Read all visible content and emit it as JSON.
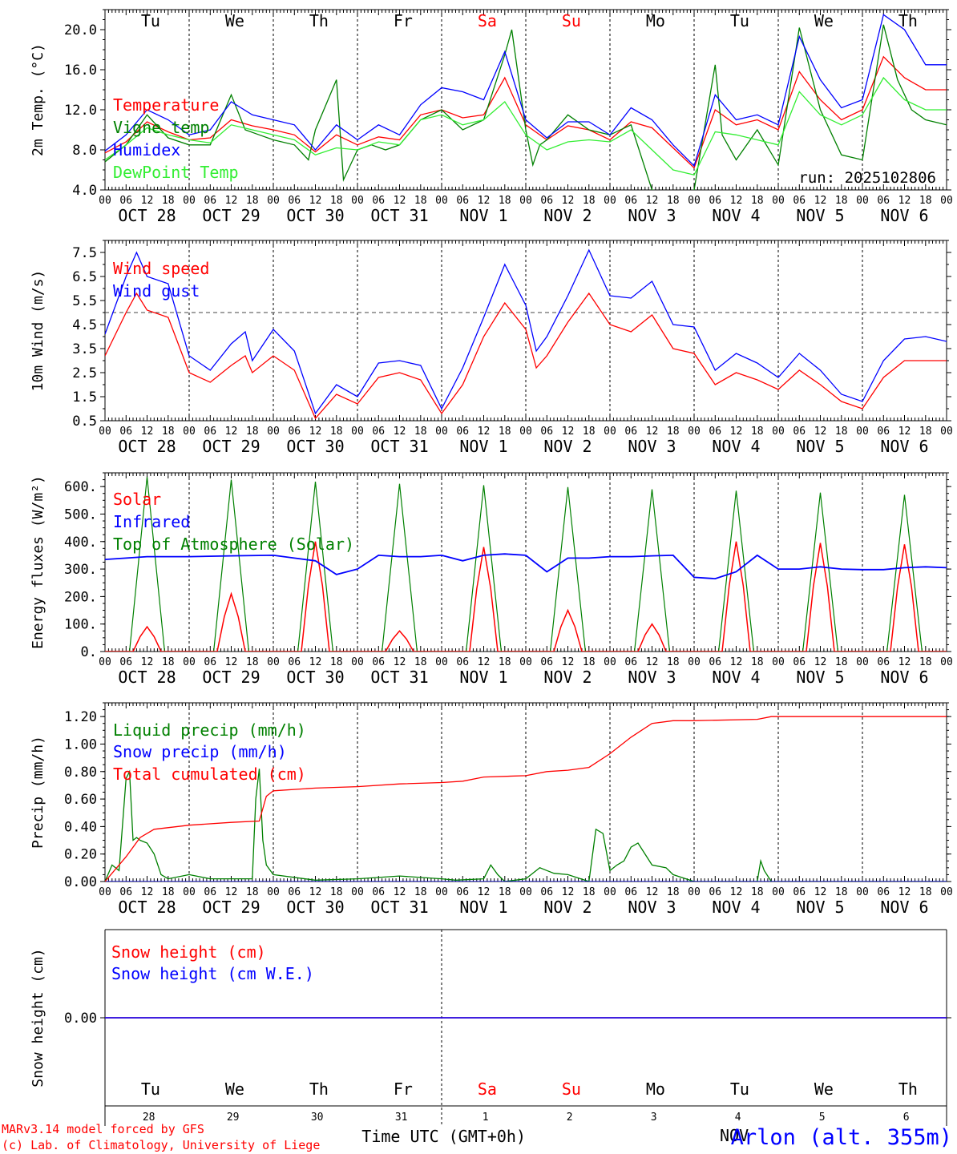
{
  "run_label": "run: 2025102806",
  "hour_labels": [
    "00",
    "06",
    "12",
    "18"
  ],
  "day_abbrev": [
    "Tu",
    "We",
    "Th",
    "Fr",
    "Sa",
    "Su",
    "Mo",
    "Tu",
    "We",
    "Th"
  ],
  "weekend_days": [
    4,
    5
  ],
  "date_labels": [
    "OCT 28",
    "OCT 29",
    "OCT 30",
    "OCT 31",
    "NOV  1",
    "NOV  2",
    "NOV  3",
    "NOV  4",
    "NOV  5",
    "NOV  6"
  ],
  "day_numbers": [
    "28",
    "29",
    "30",
    "31",
    "1",
    "2",
    "3",
    "4",
    "5",
    "6"
  ],
  "month_label_bottom": "NOV",
  "x_axis_title": "Time UTC (GMT+0h)",
  "footer": {
    "model_line": "MARv3.14 model forced by GFS",
    "copyright_line": "(c) Lab. of Climatology, University of Liege",
    "station": "Arlon (alt. 355m)"
  },
  "colors": {
    "red": "#ff0000",
    "green": "#008000",
    "blue": "#0000ff",
    "lightgreen": "#33ee33"
  },
  "chart_data": [
    {
      "id": "temp",
      "type": "line",
      "ylabel": "2m Temp. (°C)",
      "ylim": [
        4,
        22
      ],
      "tick_values": [
        4,
        8,
        12,
        16,
        20
      ],
      "tick_labels": [
        "4.0",
        "8.0",
        "12.0",
        "16.0",
        "20.0"
      ],
      "x_unit": "hours since 2025-10-28 00 UTC",
      "xlim": [
        0,
        240
      ],
      "series": [
        {
          "name": "Temperature",
          "color": "red",
          "x": [
            0,
            6,
            12,
            18,
            24,
            30,
            36,
            42,
            48,
            54,
            60,
            66,
            72,
            78,
            84,
            90,
            96,
            102,
            108,
            114,
            120,
            126,
            132,
            138,
            144,
            150,
            156,
            162,
            168,
            174,
            180,
            186,
            192,
            198,
            204,
            210,
            216,
            222,
            228,
            234,
            240
          ],
          "y": [
            7.7,
            8.8,
            10.8,
            9.8,
            9.0,
            9.2,
            11.0,
            10.4,
            10.0,
            9.5,
            7.8,
            9.5,
            8.5,
            9.3,
            9.0,
            11.5,
            12.0,
            11.2,
            11.5,
            15.2,
            10.5,
            9.0,
            10.4,
            10.0,
            9.0,
            10.8,
            10.2,
            8.2,
            6.2,
            12.0,
            10.5,
            11.0,
            10.0,
            15.8,
            13.0,
            11.0,
            12.0,
            17.3,
            15.2,
            14.0,
            14.0
          ]
        },
        {
          "name": "Vigne temp",
          "color": "green",
          "x": [
            0,
            6,
            12,
            18,
            24,
            30,
            36,
            40,
            44,
            48,
            54,
            58,
            60,
            66,
            68,
            72,
            76,
            80,
            84,
            90,
            96,
            102,
            108,
            114,
            116,
            120,
            122,
            124,
            126,
            132,
            138,
            144,
            150,
            156,
            162,
            168,
            174,
            176,
            180,
            186,
            192,
            198,
            204,
            210,
            216,
            222,
            226,
            230,
            234,
            240
          ],
          "y": [
            6.8,
            8.5,
            11.5,
            9.2,
            8.5,
            8.5,
            13.5,
            10.0,
            9.5,
            9.0,
            8.5,
            7.0,
            10.0,
            15.0,
            5.0,
            8.0,
            8.5,
            8.0,
            8.5,
            11.0,
            12.0,
            10.0,
            11.0,
            17.5,
            20.0,
            10.0,
            6.5,
            8.5,
            9.0,
            11.5,
            10.0,
            9.5,
            10.5,
            4.0,
            3.5,
            4.0,
            16.5,
            9.5,
            7.0,
            10.0,
            6.5,
            20.2,
            12.0,
            7.5,
            7.0,
            20.5,
            15.0,
            12.0,
            11.0,
            10.5
          ]
        },
        {
          "name": "Humidex",
          "color": "blue",
          "x": [
            0,
            6,
            12,
            18,
            24,
            30,
            36,
            42,
            48,
            54,
            60,
            66,
            72,
            78,
            84,
            90,
            96,
            102,
            108,
            114,
            120,
            126,
            132,
            138,
            144,
            150,
            156,
            162,
            168,
            174,
            180,
            186,
            192,
            198,
            204,
            210,
            216,
            222,
            228,
            234,
            240
          ],
          "y": [
            7.9,
            9.5,
            12.0,
            11.0,
            9.5,
            10.0,
            12.8,
            11.5,
            11.0,
            10.5,
            8.0,
            10.5,
            9.0,
            10.5,
            9.5,
            12.5,
            14.2,
            13.8,
            13.0,
            17.8,
            11.0,
            9.2,
            10.8,
            10.8,
            9.5,
            12.2,
            11.0,
            8.5,
            6.4,
            13.5,
            11.0,
            11.5,
            10.5,
            19.3,
            15.0,
            12.2,
            13.0,
            21.5,
            20.0,
            16.5,
            16.5
          ]
        },
        {
          "name": "DewPoint Temp",
          "color": "lightgreen",
          "x": [
            0,
            6,
            12,
            18,
            24,
            30,
            36,
            42,
            48,
            54,
            60,
            66,
            72,
            78,
            84,
            90,
            96,
            102,
            108,
            114,
            120,
            126,
            132,
            138,
            144,
            150,
            156,
            162,
            168,
            174,
            180,
            186,
            192,
            198,
            204,
            210,
            216,
            222,
            228,
            234,
            240
          ],
          "y": [
            7.0,
            8.5,
            10.2,
            9.5,
            9.0,
            8.7,
            10.5,
            10.0,
            9.5,
            9.0,
            7.5,
            8.2,
            8.0,
            8.8,
            8.5,
            11.0,
            11.5,
            10.5,
            11.0,
            12.8,
            9.5,
            8.0,
            8.8,
            9.0,
            8.8,
            10.0,
            8.0,
            6.0,
            5.5,
            9.8,
            9.5,
            9.0,
            8.5,
            13.8,
            11.5,
            10.5,
            11.5,
            15.2,
            13.0,
            12.0,
            12.0
          ]
        }
      ]
    },
    {
      "id": "wind",
      "type": "line",
      "ylabel": "10m Wind (m/s)",
      "ylim": [
        0.5,
        8.0
      ],
      "tick_values": [
        0.5,
        1.5,
        2.5,
        3.5,
        4.5,
        5.5,
        6.5,
        7.5
      ],
      "tick_labels": [
        "0.5",
        "1.5",
        "2.5",
        "3.5",
        "4.5",
        "5.5",
        "6.5",
        "7.5"
      ],
      "reference_line": 5.0,
      "xlim": [
        0,
        240
      ],
      "series": [
        {
          "name": "Wind speed",
          "color": "red",
          "x": [
            0,
            6,
            9,
            12,
            18,
            24,
            30,
            36,
            40,
            42,
            48,
            54,
            60,
            66,
            72,
            78,
            84,
            90,
            96,
            102,
            108,
            114,
            120,
            123,
            126,
            132,
            138,
            144,
            150,
            156,
            162,
            168,
            174,
            180,
            186,
            192,
            198,
            204,
            210,
            216,
            222,
            228,
            234,
            240
          ],
          "y": [
            3.2,
            5.0,
            5.8,
            5.1,
            4.8,
            2.5,
            2.1,
            2.8,
            3.2,
            2.5,
            3.2,
            2.6,
            0.6,
            1.6,
            1.2,
            2.3,
            2.5,
            2.2,
            0.8,
            2.0,
            4.0,
            5.4,
            4.3,
            2.7,
            3.2,
            4.6,
            5.8,
            4.5,
            4.2,
            4.9,
            3.5,
            3.3,
            2.0,
            2.5,
            2.2,
            1.8,
            2.6,
            2.0,
            1.3,
            1.0,
            2.3,
            3.0,
            3.0,
            3.0
          ]
        },
        {
          "name": "Wind gust",
          "color": "blue",
          "x": [
            0,
            6,
            9,
            12,
            18,
            24,
            30,
            36,
            40,
            42,
            48,
            54,
            60,
            66,
            72,
            78,
            84,
            90,
            96,
            102,
            108,
            114,
            120,
            123,
            126,
            132,
            138,
            144,
            150,
            156,
            162,
            168,
            174,
            180,
            186,
            192,
            198,
            204,
            210,
            216,
            222,
            228,
            234,
            240
          ],
          "y": [
            4.1,
            6.5,
            7.5,
            6.5,
            6.2,
            3.2,
            2.6,
            3.7,
            4.2,
            3.0,
            4.3,
            3.4,
            0.8,
            2.0,
            1.5,
            2.9,
            3.0,
            2.8,
            1.0,
            2.7,
            4.8,
            7.0,
            5.3,
            3.4,
            4.0,
            5.7,
            7.6,
            5.7,
            5.6,
            6.3,
            4.5,
            4.4,
            2.6,
            3.3,
            2.9,
            2.3,
            3.3,
            2.6,
            1.6,
            1.3,
            3.0,
            3.9,
            4.0,
            3.8
          ]
        }
      ]
    },
    {
      "id": "energy",
      "type": "line",
      "ylabel": "Energy fluxes (W/m²)",
      "ylim": [
        0,
        650
      ],
      "tick_values": [
        0,
        100,
        200,
        300,
        400,
        500,
        600
      ],
      "tick_labels": [
        "0.",
        "100.",
        "200.",
        "300.",
        "400.",
        "500.",
        "600."
      ],
      "xlim": [
        0,
        240
      ],
      "daily_peaks": {
        "top_of_atmosphere": [
          635,
          625,
          618,
          610,
          605,
          598,
          590,
          585,
          578,
          570
        ],
        "solar": [
          90,
          210,
          400,
          75,
          380,
          150,
          100,
          400,
          395,
          390
        ]
      },
      "series": [
        {
          "name": "Solar",
          "color": "red"
        },
        {
          "name": "Infrared",
          "color": "blue",
          "x": [
            0,
            12,
            24,
            36,
            48,
            54,
            60,
            66,
            72,
            78,
            84,
            90,
            96,
            102,
            108,
            114,
            120,
            126,
            132,
            138,
            144,
            150,
            156,
            162,
            168,
            174,
            180,
            186,
            192,
            198,
            204,
            210,
            216,
            222,
            228,
            234,
            240
          ],
          "y": [
            335,
            345,
            345,
            348,
            350,
            340,
            330,
            280,
            300,
            350,
            345,
            345,
            350,
            330,
            350,
            355,
            350,
            290,
            340,
            340,
            345,
            345,
            348,
            350,
            270,
            265,
            290,
            350,
            300,
            300,
            308,
            300,
            298,
            298,
            305,
            308,
            305
          ]
        },
        {
          "name": "Top of Atmosphere (Solar)",
          "color": "green"
        }
      ]
    },
    {
      "id": "precip",
      "type": "line",
      "ylabel": "Precip (mm/h)",
      "ylim": [
        0,
        1.3
      ],
      "tick_values": [
        0,
        0.2,
        0.4,
        0.6,
        0.8,
        1.0,
        1.2
      ],
      "tick_labels": [
        "0.00",
        "0.20",
        "0.40",
        "0.60",
        "0.80",
        "1.00",
        "1.20"
      ],
      "xlim": [
        0,
        240
      ],
      "series": [
        {
          "name": "Liquid precip (mm/h)",
          "color": "green",
          "x": [
            0,
            2,
            4,
            6,
            7,
            8,
            9,
            10,
            12,
            14,
            16,
            18,
            24,
            30,
            36,
            42,
            43,
            44,
            45,
            46,
            48,
            60,
            72,
            84,
            96,
            100,
            108,
            110,
            112,
            114,
            120,
            124,
            126,
            128,
            132,
            138,
            140,
            142,
            144,
            146,
            148,
            150,
            152,
            156,
            160,
            162,
            168,
            186,
            187,
            188,
            190,
            240
          ],
          "y": [
            0.0,
            0.12,
            0.08,
            0.75,
            0.8,
            0.3,
            0.32,
            0.3,
            0.28,
            0.2,
            0.05,
            0.02,
            0.05,
            0.02,
            0.02,
            0.02,
            0.6,
            0.82,
            0.3,
            0.12,
            0.05,
            0.01,
            0.02,
            0.04,
            0.02,
            0.01,
            0.02,
            0.12,
            0.05,
            0.0,
            0.02,
            0.1,
            0.08,
            0.06,
            0.05,
            0.0,
            0.38,
            0.35,
            0.08,
            0.12,
            0.15,
            0.25,
            0.28,
            0.12,
            0.1,
            0.05,
            0.0,
            0.0,
            0.15,
            0.08,
            0.0,
            0.0
          ]
        },
        {
          "name": "Snow precip (mm/h)",
          "color": "blue",
          "x": [
            0,
            240
          ],
          "y": [
            0,
            0
          ]
        },
        {
          "name": "Total cumulated (cm)",
          "color": "red",
          "x": [
            0,
            6,
            10,
            14,
            24,
            36,
            44,
            46,
            48,
            60,
            72,
            84,
            96,
            102,
            108,
            120,
            126,
            132,
            138,
            144,
            150,
            156,
            162,
            168,
            186,
            190,
            240
          ],
          "y": [
            0.0,
            0.18,
            0.32,
            0.38,
            0.41,
            0.43,
            0.44,
            0.62,
            0.66,
            0.68,
            0.69,
            0.71,
            0.72,
            0.73,
            0.76,
            0.77,
            0.8,
            0.81,
            0.83,
            0.93,
            1.05,
            1.15,
            1.17,
            1.17,
            1.18,
            1.2,
            1.2
          ]
        }
      ]
    },
    {
      "id": "snow",
      "type": "line",
      "ylabel": "Snow height (cm)",
      "ylim": [
        -1,
        1
      ],
      "tick_values": [
        0
      ],
      "tick_labels": [
        "0.00"
      ],
      "xlim": [
        0,
        240
      ],
      "series": [
        {
          "name": "Snow height (cm)",
          "color": "red",
          "x": [
            0,
            240
          ],
          "y": [
            0,
            0
          ]
        },
        {
          "name": "Snow height (cm W.E.)",
          "color": "blue",
          "x": [
            0,
            240
          ],
          "y": [
            0,
            0
          ]
        }
      ]
    }
  ]
}
